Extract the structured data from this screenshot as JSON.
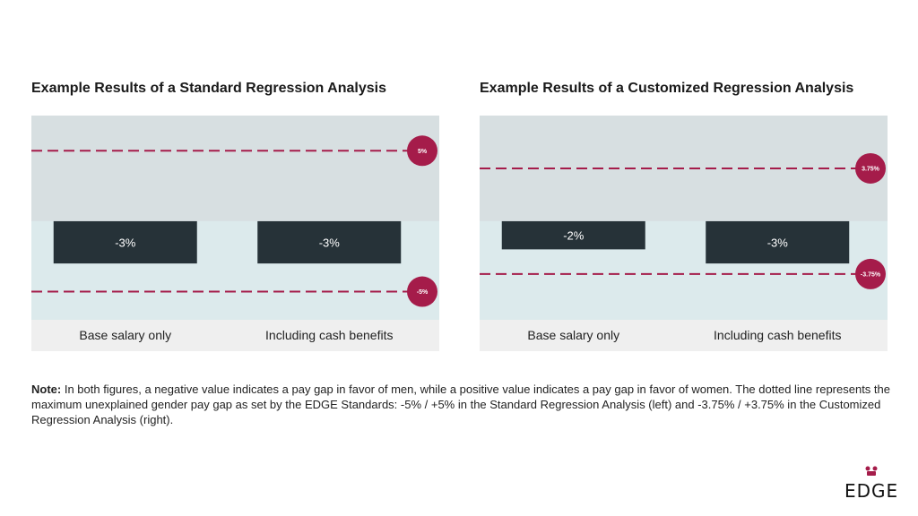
{
  "charts": {
    "standard": {
      "title": "Example Results of a Standard Regression Analysis"
    },
    "customized": {
      "title": "Example Results of a Customized Regression Analysis"
    }
  },
  "note": {
    "label": "Note:",
    "text": " In both figures, a negative value indicates a pay gap in favor of men, while a positive value indicates a pay gap in favor of women. The dotted line represents the maximum unexplained gender pay gap as set by the EDGE Standards: -5% / +5% in the Standard Regression Analysis (left) and -3.75% / +3.75% in the Customized Regression Analysis (right)."
  },
  "logo": {
    "text": "EDGE"
  },
  "colors": {
    "upper_band": "#d7dfe1",
    "lower_band": "#dceaec",
    "axis_band": "#efefef",
    "bar": "#263238",
    "threshold": "#a51c4a"
  },
  "chart_data": [
    {
      "type": "bar",
      "title": "Example Results of a Standard Regression Analysis",
      "categories": [
        "Base salary only",
        "Including cash benefits"
      ],
      "values": [
        -3,
        -3
      ],
      "value_labels": [
        "-3%",
        "-3%"
      ],
      "thresholds": [
        {
          "value": 5,
          "label": "5%"
        },
        {
          "value": -5,
          "label": "-5%"
        }
      ],
      "ylim": [
        -7,
        7.5
      ]
    },
    {
      "type": "bar",
      "title": "Example Results of a Customized Regression Analysis",
      "categories": [
        "Base salary only",
        "Including cash benefits"
      ],
      "values": [
        -2,
        -3
      ],
      "value_labels": [
        "-2%",
        "-3%"
      ],
      "thresholds": [
        {
          "value": 3.75,
          "label": "3.75%"
        },
        {
          "value": -3.75,
          "label": "-3.75%"
        }
      ],
      "ylim": [
        -7,
        7.5
      ]
    }
  ]
}
